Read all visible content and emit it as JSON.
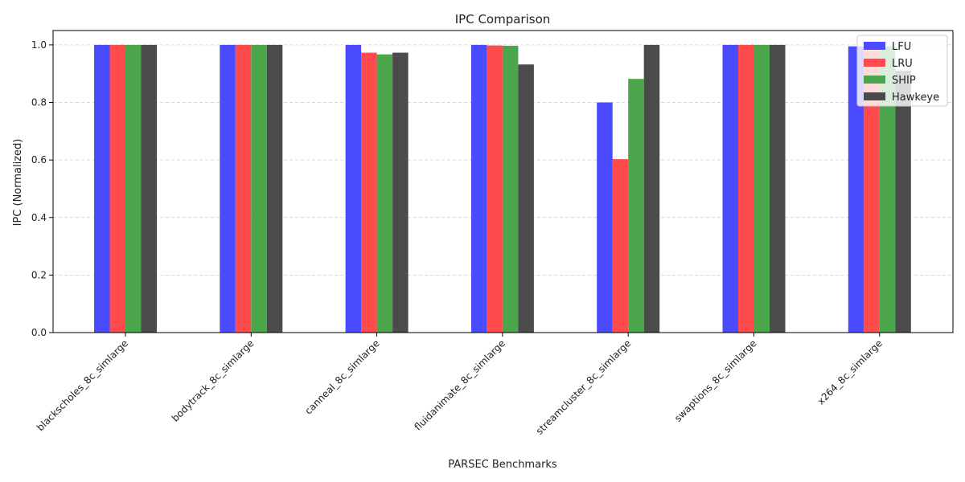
{
  "chart_data": {
    "type": "bar",
    "title": "IPC Comparison",
    "xlabel": "PARSEC Benchmarks",
    "ylabel": "IPC (Normalized)",
    "ylim": [
      0,
      1.05
    ],
    "yticks": [
      "0.0",
      "0.2",
      "0.4",
      "0.6",
      "0.8",
      "1.0"
    ],
    "grid": "y-dashed",
    "legend_position": "top-right",
    "categories": [
      "blackscholes_8c_simlarge",
      "bodytrack_8c_simlarge",
      "canneal_8c_simlarge",
      "fluidanimate_8c_simlarge",
      "streamcluster_8c_simlarge",
      "swaptions_8c_simlarge",
      "x264_8c_simlarge"
    ],
    "series": [
      {
        "name": "LFU",
        "color": "#4b4bff",
        "values": [
          1.0,
          1.0,
          1.0,
          1.0,
          0.8,
          1.0,
          0.995
        ]
      },
      {
        "name": "LRU",
        "color": "#ff4b4b",
        "values": [
          1.0,
          1.0,
          0.973,
          0.998,
          0.603,
          1.0,
          0.99
        ]
      },
      {
        "name": "SHIP",
        "color": "#4ba64b",
        "values": [
          1.0,
          1.0,
          0.967,
          0.997,
          0.882,
          1.0,
          0.995
        ]
      },
      {
        "name": "Hawkeye",
        "color": "#4b4b4b",
        "values": [
          1.0,
          1.0,
          0.973,
          0.932,
          1.0,
          1.0,
          0.91
        ]
      }
    ]
  }
}
